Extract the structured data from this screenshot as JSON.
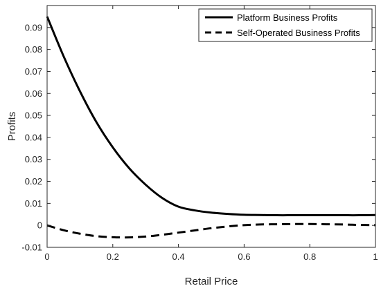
{
  "chart_data": {
    "type": "line",
    "title": "",
    "xlabel": "Retail Price",
    "ylabel": "Profits",
    "xlim": [
      0,
      1
    ],
    "ylim": [
      -0.01,
      0.1
    ],
    "x_ticks": [
      0,
      0.2,
      0.4,
      0.6,
      0.8,
      1
    ],
    "x_tick_labels": [
      "0",
      "0.2",
      "0.4",
      "0.6",
      "0.8",
      "1"
    ],
    "y_ticks": [
      -0.01,
      0,
      0.01,
      0.02,
      0.03,
      0.04,
      0.05,
      0.06,
      0.07,
      0.08,
      0.09
    ],
    "y_tick_labels": [
      "-0.01",
      "0",
      "0.01",
      "0.02",
      "0.03",
      "0.04",
      "0.05",
      "0.06",
      "0.07",
      "0.08",
      "0.09"
    ],
    "grid": false,
    "legend_position": "top-right",
    "x": [
      0,
      0.05,
      0.1,
      0.15,
      0.2,
      0.25,
      0.3,
      0.35,
      0.4,
      0.45,
      0.5,
      0.55,
      0.6,
      0.65,
      0.7,
      0.75,
      0.8,
      0.85,
      0.9,
      0.95,
      1
    ],
    "series": [
      {
        "name": "Platform Business Profits",
        "style": "solid",
        "color": "#000000",
        "values": [
          0.095,
          0.077,
          0.061,
          0.047,
          0.0355,
          0.026,
          0.0185,
          0.0125,
          0.0085,
          0.0068,
          0.0058,
          0.0052,
          0.0048,
          0.0047,
          0.0046,
          0.0046,
          0.0046,
          0.0046,
          0.0046,
          0.0046,
          0.0047
        ]
      },
      {
        "name": "Self-Operated Business Profits",
        "style": "dashed",
        "color": "#000000",
        "values": [
          0.0,
          -0.0022,
          -0.0038,
          -0.0049,
          -0.0054,
          -0.0055,
          -0.0051,
          -0.0043,
          -0.0033,
          -0.0023,
          -0.0013,
          -0.0005,
          0.0001,
          0.0004,
          0.0005,
          0.0006,
          0.0006,
          0.0005,
          0.0004,
          0.0002,
          0.0001
        ]
      }
    ]
  }
}
